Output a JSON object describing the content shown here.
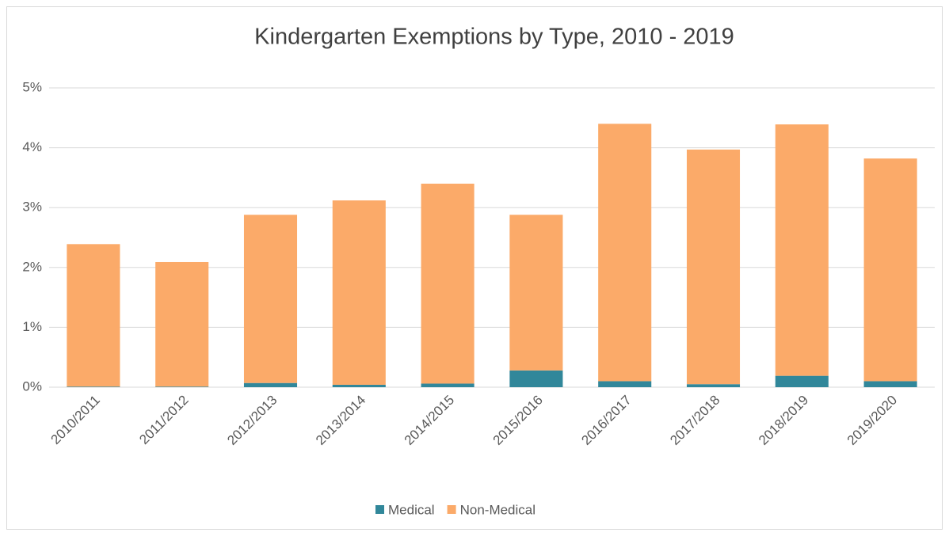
{
  "chart_data": {
    "type": "stacked_bar",
    "title": "Kindergarten Exemptions by Type, 2010 - 2019",
    "categories": [
      "2010/2011",
      "2011/2012",
      "2012/2013",
      "2013/2014",
      "2014/2015",
      "2015/2016",
      "2016/2017",
      "2017/2018",
      "2018/2019",
      "2019/2020"
    ],
    "series": [
      {
        "name": "Medical",
        "color": "#31879a",
        "values": [
          0.01,
          0.01,
          0.07,
          0.04,
          0.06,
          0.28,
          0.1,
          0.05,
          0.19,
          0.1
        ]
      },
      {
        "name": "Non-Medical",
        "color": "#fbaa69",
        "values": [
          2.38,
          2.08,
          2.81,
          3.08,
          3.34,
          2.6,
          4.3,
          3.92,
          4.2,
          3.72
        ]
      }
    ],
    "ylim": [
      0,
      5
    ],
    "yticks": [
      {
        "value": 0,
        "label": "0%"
      },
      {
        "value": 1,
        "label": "1%"
      },
      {
        "value": 2,
        "label": "2%"
      },
      {
        "value": 3,
        "label": "3%"
      },
      {
        "value": 4,
        "label": "4%"
      },
      {
        "value": 5,
        "label": "5%"
      }
    ],
    "grid": true,
    "legend": "bottom"
  }
}
